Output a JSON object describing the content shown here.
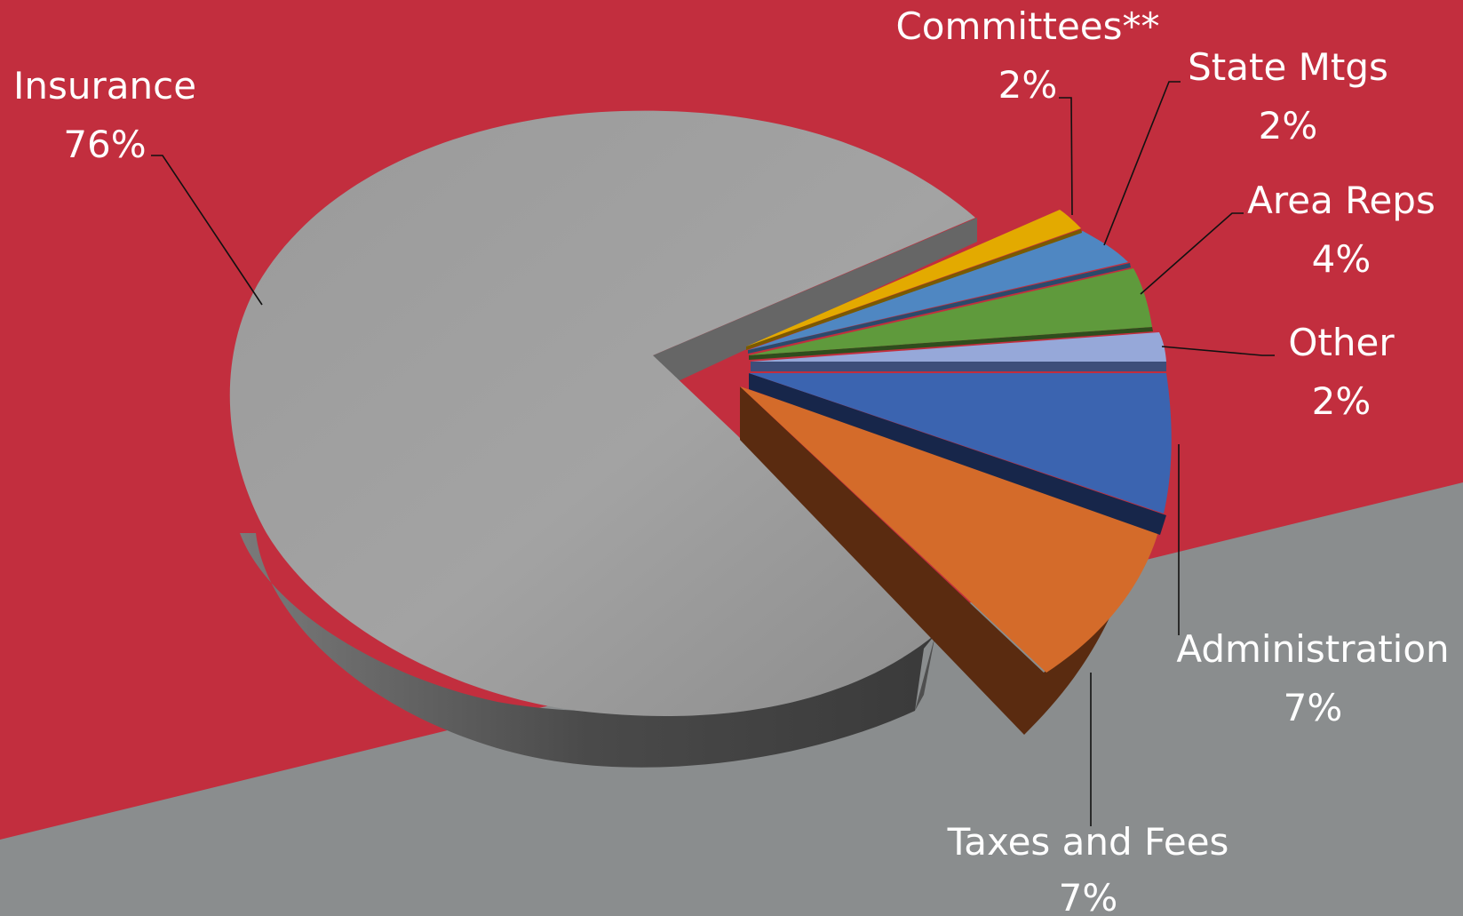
{
  "colors": {
    "background_red": "#c22e3e",
    "background_gray": "#8a8d8e"
  },
  "chart_data": {
    "type": "pie",
    "style": "3d-exploded",
    "title": "",
    "slices": [
      {
        "label": "Insurance",
        "value": 76,
        "display": "76%",
        "color": "#999999"
      },
      {
        "label": "Committees**",
        "value": 2,
        "display": "2%",
        "color": "#e3aa00"
      },
      {
        "label": "State Mtgs",
        "value": 2,
        "display": "2%",
        "color": "#4f87c2"
      },
      {
        "label": "Area Reps",
        "value": 4,
        "display": "4%",
        "color": "#5f9a3c"
      },
      {
        "label": "Other",
        "value": 2,
        "display": "2%",
        "color": "#96a8d9"
      },
      {
        "label": "Administration",
        "value": 7,
        "display": "7%",
        "color": "#3b64b0"
      },
      {
        "label": "Taxes and Fees",
        "value": 7,
        "display": "7%",
        "color": "#d46b2a"
      }
    ]
  }
}
